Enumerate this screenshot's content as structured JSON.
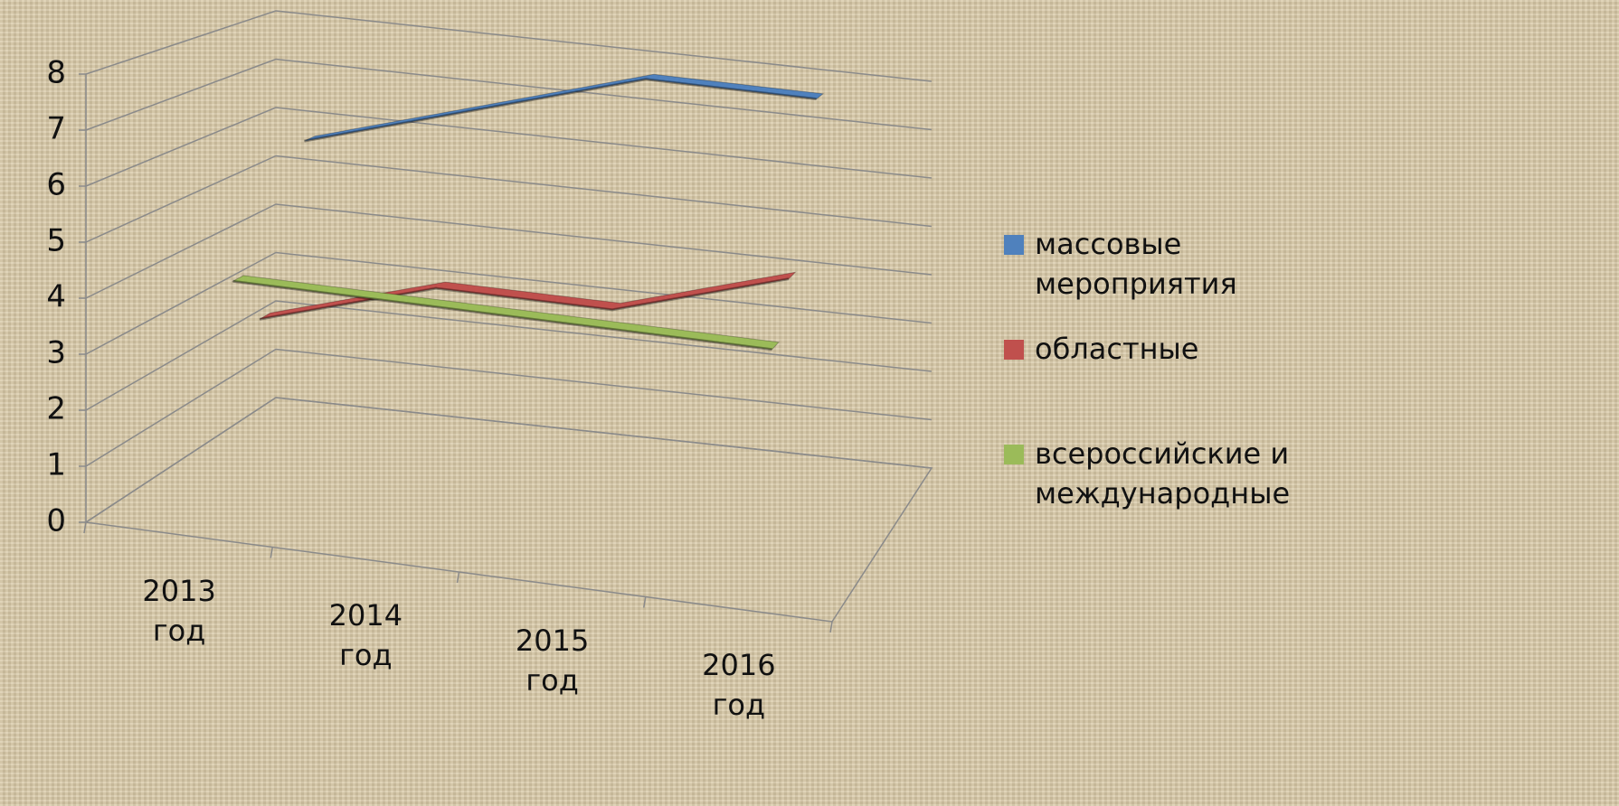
{
  "chart_data": {
    "type": "line3d",
    "categories": [
      "2013 год",
      "2014 год",
      "2015 год",
      "2016 год"
    ],
    "series": [
      {
        "name": "массовые мероприятия",
        "color": "#4f81bd",
        "values": [
          6,
          7,
          8,
          8
        ]
      },
      {
        "name": "областные",
        "color": "#c0504d",
        "values": [
          3,
          4,
          4,
          5
        ]
      },
      {
        "name": "всероссийские и международные",
        "color": "#9bbb59",
        "values": [
          4,
          4,
          4,
          4
        ]
      }
    ],
    "ylim": [
      0,
      8
    ],
    "yticks": [
      0,
      1,
      2,
      3,
      4,
      5,
      6,
      7,
      8
    ],
    "grid": true
  }
}
